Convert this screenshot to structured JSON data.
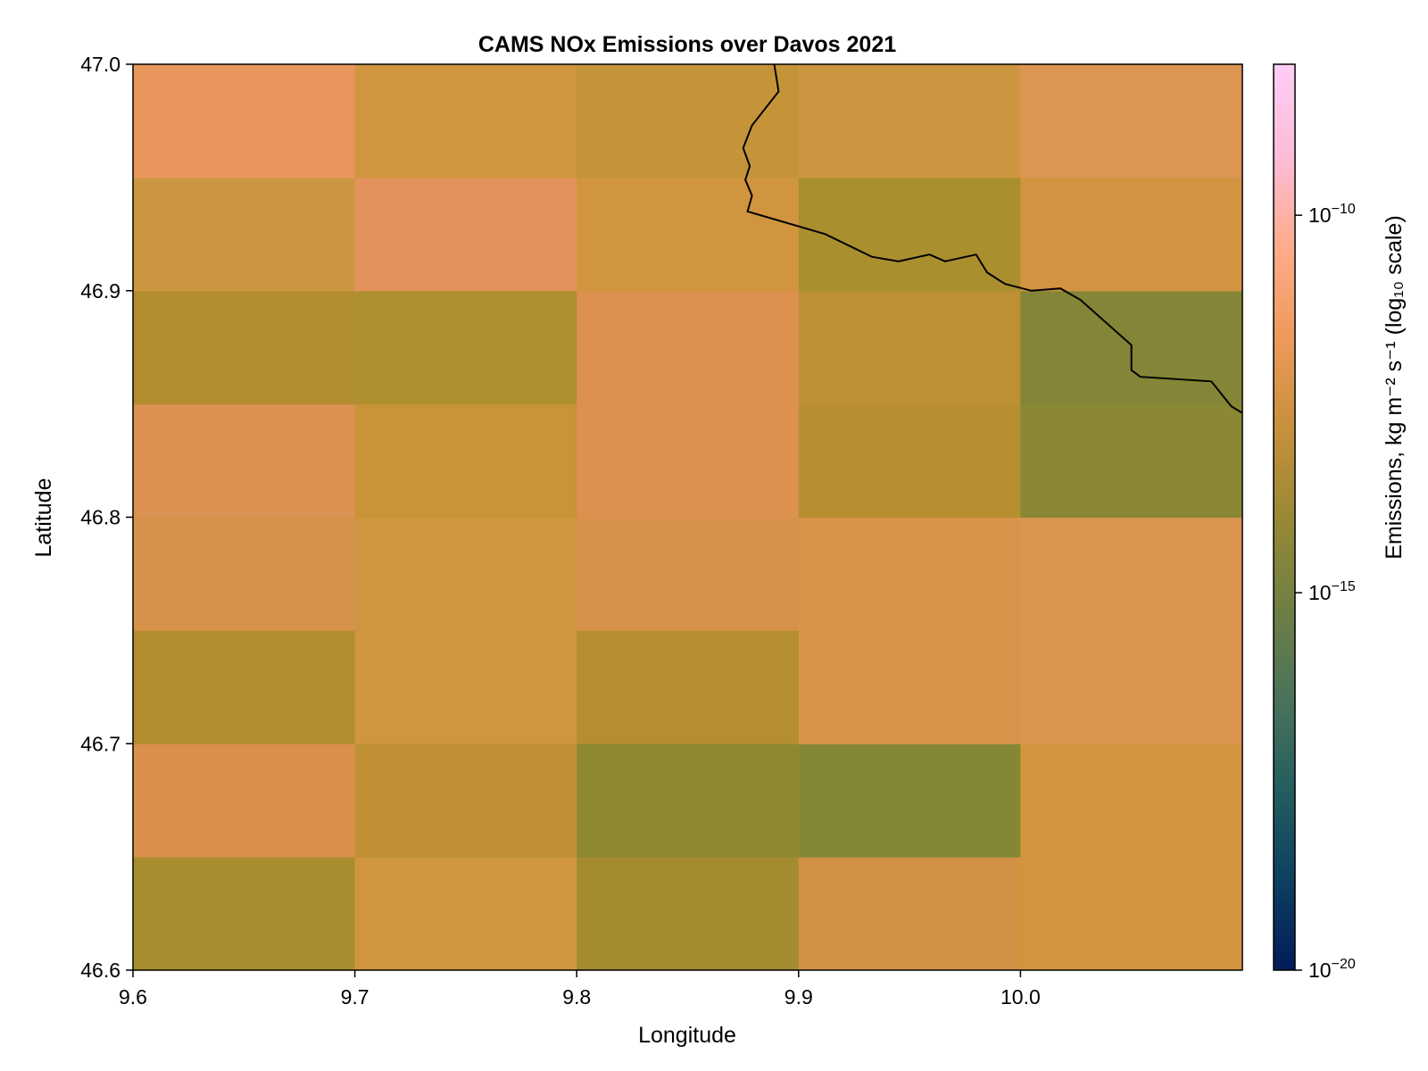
{
  "chart_data": {
    "type": "heatmap",
    "title": "CAMS NOx Emissions over Davos 2021",
    "xlabel": "Longitude",
    "ylabel": "Latitude",
    "xlim": [
      9.6,
      10.1
    ],
    "ylim": [
      46.6,
      47.0
    ],
    "x_ticks": [
      {
        "value": 9.6,
        "label": "9.6"
      },
      {
        "value": 9.7,
        "label": "9.7"
      },
      {
        "value": 9.8,
        "label": "9.8"
      },
      {
        "value": 9.9,
        "label": "9.9"
      },
      {
        "value": 10.0,
        "label": "10.0"
      }
    ],
    "y_ticks": [
      {
        "value": 46.6,
        "label": "46.6"
      },
      {
        "value": 46.7,
        "label": "46.7"
      },
      {
        "value": 46.8,
        "label": "46.8"
      },
      {
        "value": 46.9,
        "label": "46.9"
      },
      {
        "value": 47.0,
        "label": "47.0"
      }
    ],
    "x_edges": [
      9.6,
      9.7,
      9.8,
      9.9,
      10.0,
      10.1
    ],
    "y_edges": [
      46.6,
      46.65,
      46.7,
      46.75,
      46.8,
      46.85,
      46.9,
      46.95,
      47.0
    ],
    "cell_colors_note": "rows ordered from bottom (46.6) to top (47.0)",
    "cell_colors": [
      [
        "#a88d2f",
        "#cf953f",
        "#a48b2f",
        "#d29245",
        "#d3943f"
      ],
      [
        "#d8904b",
        "#bf9034",
        "#8f8832",
        "#848834",
        "#d3943f"
      ],
      [
        "#b28d2e",
        "#cf953f",
        "#b48e30",
        "#d8944a",
        "#dc9550"
      ],
      [
        "#d6914a",
        "#cf953f",
        "#d6914a",
        "#d8944a",
        "#dc9550"
      ],
      [
        "#db9152",
        "#c99337",
        "#dc9150",
        "#b78f31",
        "#8a8735"
      ],
      [
        "#b28d2e",
        "#b08f2f",
        "#dc9150",
        "#bd9034",
        "#848536"
      ],
      [
        "#cc9640",
        "#e2925a",
        "#d1943f",
        "#aa8f2e",
        "#d39441"
      ],
      [
        "#e8965c",
        "#d0953e",
        "#c59439",
        "#cc9640",
        "#dd9553"
      ]
    ],
    "coastline_path": [
      [
        9.889,
        47.0
      ],
      [
        9.891,
        46.988
      ],
      [
        9.879,
        46.973
      ],
      [
        9.875,
        46.963
      ],
      [
        9.878,
        46.955
      ],
      [
        9.876,
        46.949
      ],
      [
        9.879,
        46.942
      ],
      [
        9.877,
        46.935
      ],
      [
        9.912,
        46.925
      ],
      [
        9.933,
        46.915
      ],
      [
        9.945,
        46.913
      ],
      [
        9.959,
        46.916
      ],
      [
        9.966,
        46.913
      ],
      [
        9.98,
        46.916
      ],
      [
        9.985,
        46.908
      ],
      [
        9.993,
        46.903
      ],
      [
        10.005,
        46.9
      ],
      [
        10.018,
        46.901
      ],
      [
        10.027,
        46.896
      ],
      [
        10.05,
        46.876
      ],
      [
        10.05,
        46.865
      ],
      [
        10.054,
        46.862
      ],
      [
        10.086,
        46.86
      ],
      [
        10.095,
        46.849
      ],
      [
        10.1,
        46.846
      ]
    ],
    "colorbar": {
      "label": "Emissions, kg m⁻² s⁻¹ (log₁₀ scale)",
      "scale": "log10",
      "range": [
        1e-20,
        1e-08
      ],
      "ticks": [
        {
          "value": -20,
          "base": "10",
          "exp": "−20"
        },
        {
          "value": -15,
          "base": "10",
          "exp": "−15"
        },
        {
          "value": -10,
          "base": "10",
          "exp": "−10"
        }
      ],
      "colormap": [
        "#001c5a",
        "#0e4060",
        "#245e5f",
        "#4a735a",
        "#6f7f44",
        "#998935",
        "#c8903c",
        "#ee9a5c",
        "#ffac8c",
        "#fdbcd9",
        "#ffcdf6"
      ]
    }
  }
}
